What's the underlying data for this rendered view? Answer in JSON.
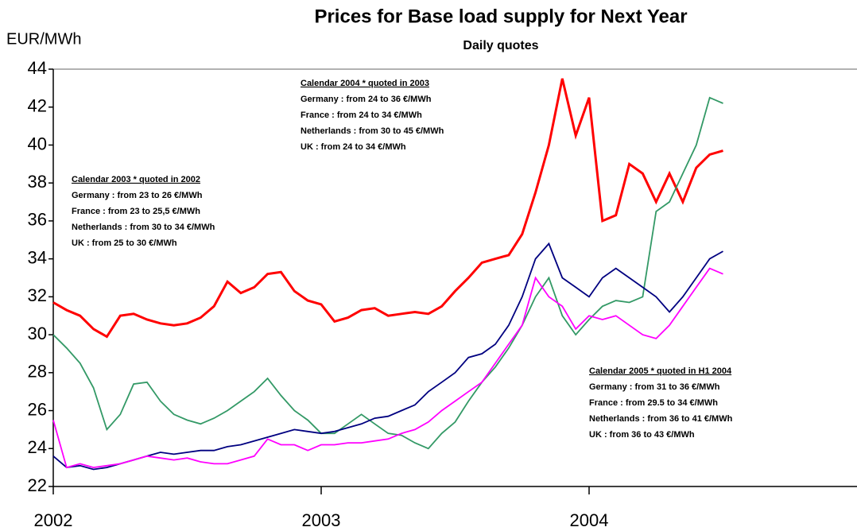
{
  "chart_data": {
    "type": "line",
    "title": "Prices for Base load supply for Next Year",
    "subtitle": "Daily quotes",
    "y_label": "EUR/MWh",
    "x": [
      2002,
      2002.05,
      2002.1,
      2002.15,
      2002.2,
      2002.25,
      2002.3,
      2002.35,
      2002.4,
      2002.45,
      2002.5,
      2002.55,
      2002.6,
      2002.65,
      2002.7,
      2002.75,
      2002.8,
      2002.85,
      2002.9,
      2002.95,
      2003,
      2003.05,
      2003.1,
      2003.15,
      2003.2,
      2003.25,
      2003.3,
      2003.35,
      2003.4,
      2003.45,
      2003.5,
      2003.55,
      2003.6,
      2003.65,
      2003.7,
      2003.75,
      2003.8,
      2003.85,
      2003.9,
      2003.95,
      2004,
      2004.05,
      2004.1,
      2004.15,
      2004.2,
      2004.25,
      2004.3,
      2004.35,
      2004.4,
      2004.45,
      2004.5
    ],
    "series": [
      {
        "color": "#ff0000",
        "values": [
          31.7,
          31.3,
          31.0,
          30.3,
          29.9,
          31.0,
          31.1,
          30.8,
          30.6,
          30.5,
          30.6,
          30.9,
          31.5,
          32.8,
          32.2,
          32.5,
          33.2,
          33.3,
          32.3,
          31.8,
          31.6,
          30.7,
          30.9,
          31.3,
          31.4,
          31.0,
          31.1,
          31.2,
          31.1,
          31.5,
          32.3,
          33.0,
          33.8,
          34.0,
          34.2,
          35.3,
          37.5,
          40.0,
          43.5,
          40.5,
          42.5,
          36.0,
          36.3,
          39.0,
          38.5,
          37.0,
          38.5,
          37.0,
          38.8,
          39.5,
          39.7
        ]
      },
      {
        "color": "#339966",
        "values": [
          30.0,
          29.3,
          28.5,
          27.2,
          25.0,
          25.8,
          27.4,
          27.5,
          26.5,
          25.8,
          25.5,
          25.3,
          25.6,
          26.0,
          26.5,
          27.0,
          27.7,
          26.8,
          26.0,
          25.5,
          24.8,
          24.8,
          25.3,
          25.8,
          25.3,
          24.8,
          24.7,
          24.3,
          24.0,
          24.8,
          25.4,
          26.5,
          27.5,
          28.3,
          29.3,
          30.5,
          32.0,
          33.0,
          31.0,
          30.0,
          30.8,
          31.5,
          31.8,
          31.7,
          32.0,
          36.5,
          37.0,
          38.5,
          40.0,
          42.5,
          42.2
        ]
      },
      {
        "color": "#000080",
        "values": [
          23.6,
          23.0,
          23.1,
          22.9,
          23.0,
          23.2,
          23.4,
          23.6,
          23.8,
          23.7,
          23.8,
          23.9,
          23.9,
          24.1,
          24.2,
          24.4,
          24.6,
          24.8,
          25.0,
          24.9,
          24.8,
          24.9,
          25.1,
          25.3,
          25.6,
          25.7,
          26.0,
          26.3,
          27.0,
          27.5,
          28.0,
          28.8,
          29.0,
          29.5,
          30.5,
          32.0,
          34.0,
          34.8,
          33.0,
          32.5,
          32.0,
          33.0,
          33.5,
          33.0,
          32.5,
          32.0,
          31.2,
          32.0,
          33.0,
          34.0,
          34.4
        ]
      },
      {
        "color": "#ff00ff",
        "values": [
          25.5,
          23.0,
          23.2,
          23.0,
          23.1,
          23.2,
          23.4,
          23.6,
          23.5,
          23.4,
          23.5,
          23.3,
          23.2,
          23.2,
          23.4,
          23.6,
          24.5,
          24.2,
          24.2,
          23.9,
          24.2,
          24.2,
          24.3,
          24.3,
          24.4,
          24.5,
          24.8,
          25.0,
          25.4,
          26.0,
          26.5,
          27.0,
          27.5,
          28.5,
          29.5,
          30.5,
          33.0,
          32.0,
          31.5,
          30.3,
          31.0,
          30.8,
          31.0,
          30.5,
          30.0,
          29.8,
          30.5,
          31.5,
          32.5,
          33.5,
          33.2
        ]
      }
    ],
    "xlim": [
      2002,
      2005
    ],
    "xticks": [
      2002,
      2003,
      2004
    ],
    "ylim": [
      22,
      44
    ],
    "yticks": [
      22,
      24,
      26,
      28,
      30,
      32,
      34,
      36,
      38,
      40,
      42,
      44
    ],
    "annotations": [
      {
        "lines": [
          "Calendar 2003 * quoted in 2002",
          "Germany : from 23 to 26 €/MWh",
          "France : from 23 to 25,5 €/MWh",
          "Netherlands : from 30 to 34 €/MWh",
          "UK : from 25 to 30 €/MWh"
        ]
      },
      {
        "lines": [
          "Calendar 2004 * quoted in 2003",
          "Germany : from 24 to 36 €/MWh",
          "France : from 24 to 34 €/MWh",
          "Netherlands : from 30 to 45 €/MWh",
          "UK : from 24 to 34 €/MWh"
        ]
      },
      {
        "lines": [
          "Calendar 2005 * quoted in H1 2004",
          "Germany : from 31 to 36 €/MWh",
          "France : from 29.5 to 34 €/MWh",
          "Netherlands : from 36 to 41 €/MWh",
          "UK : from 36 to 43 €/MWh"
        ]
      }
    ]
  }
}
